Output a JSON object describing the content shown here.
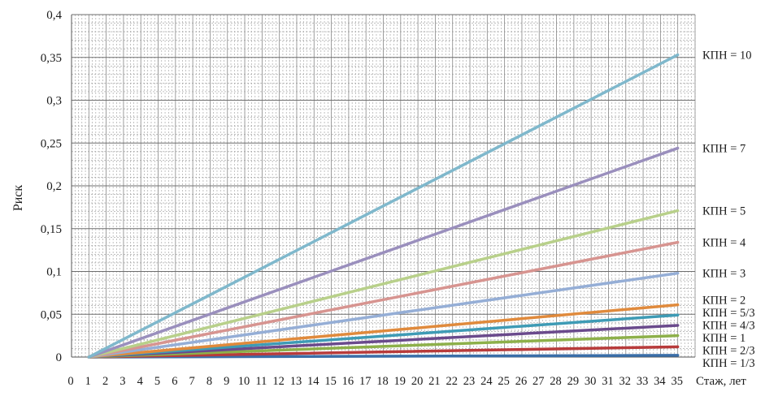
{
  "chart_data": {
    "type": "line",
    "title": "",
    "xlabel": "Стаж, лет",
    "ylabel": "Риск",
    "xlim": [
      0,
      36
    ],
    "ylim": [
      0,
      0.4
    ],
    "x_ticks": [
      0,
      1,
      2,
      3,
      4,
      5,
      6,
      7,
      8,
      9,
      10,
      11,
      12,
      13,
      14,
      15,
      16,
      17,
      18,
      19,
      20,
      21,
      22,
      23,
      24,
      25,
      26,
      27,
      28,
      29,
      30,
      31,
      32,
      33,
      34,
      35
    ],
    "y_ticks": [
      {
        "value": 0,
        "label": "0"
      },
      {
        "value": 0.05,
        "label": "0,05"
      },
      {
        "value": 0.1,
        "label": "0,1"
      },
      {
        "value": 0.15,
        "label": "0,15"
      },
      {
        "value": 0.2,
        "label": "0,2"
      },
      {
        "value": 0.25,
        "label": "0,25"
      },
      {
        "value": 0.3,
        "label": "0,3"
      },
      {
        "value": 0.35,
        "label": "0,35"
      },
      {
        "value": 0.4,
        "label": "0,4"
      }
    ],
    "grid": true,
    "x_start": 1,
    "x_end": 35,
    "series": [
      {
        "name": "КПН = 10",
        "start": 0,
        "end": 0.353,
        "color": "#7fb8cc"
      },
      {
        "name": "КПН = 7",
        "start": 0,
        "end": 0.244,
        "color": "#9a8fbd"
      },
      {
        "name": "КПН = 5",
        "start": 0,
        "end": 0.171,
        "color": "#b8d08a"
      },
      {
        "name": "КПН = 4",
        "start": 0,
        "end": 0.134,
        "color": "#d79490"
      },
      {
        "name": "КПН = 3",
        "start": 0,
        "end": 0.098,
        "color": "#95aed6"
      },
      {
        "name": "КПН = 2",
        "start": 0,
        "end": 0.061,
        "color": "#e08a3c"
      },
      {
        "name": "КПН = 5/3",
        "start": 0,
        "end": 0.049,
        "color": "#3e9bb5"
      },
      {
        "name": "КПН = 4/3",
        "start": 0,
        "end": 0.037,
        "color": "#6a4a8c"
      },
      {
        "name": "КПН = 1",
        "start": 0,
        "end": 0.025,
        "color": "#8db04a"
      },
      {
        "name": "КПН = 2/3",
        "start": 0,
        "end": 0.012,
        "color": "#b83b3b"
      },
      {
        "name": "КПН = 1/3",
        "start": 0,
        "end": 0.002,
        "color": "#3a6ea8"
      }
    ]
  }
}
